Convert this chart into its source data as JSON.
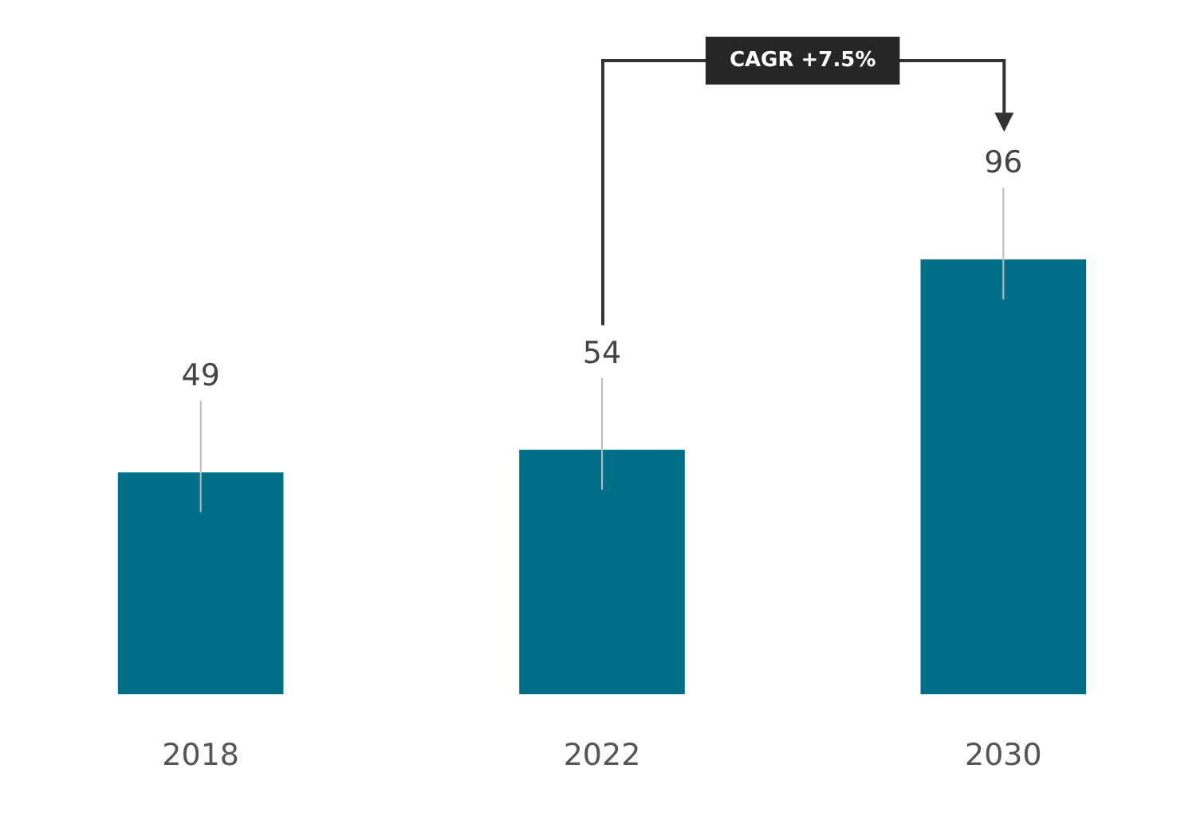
{
  "chart_data": {
    "type": "bar",
    "categories": [
      "2018",
      "2022",
      "2030"
    ],
    "values": [
      49,
      54,
      96
    ],
    "color": "#006f88",
    "data_labels": true,
    "grid": false,
    "legend": false,
    "annotations": [
      "CAGR +7.5%"
    ]
  }
}
